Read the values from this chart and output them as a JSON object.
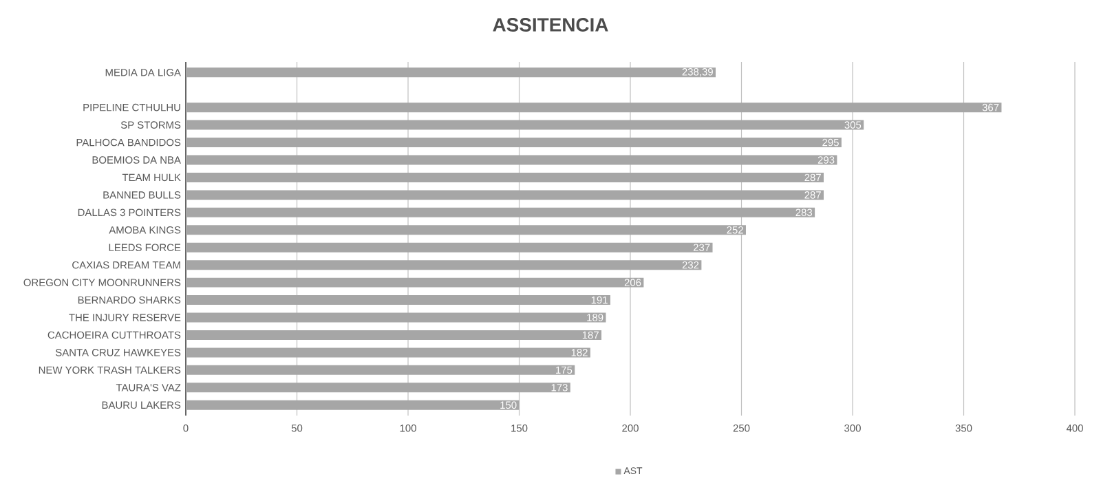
{
  "chart_data": {
    "type": "bar",
    "orientation": "horizontal",
    "title": "ASSITENCIA",
    "categories": [
      "MEDIA DA LIGA",
      null,
      "PIPELINE CTHULHU",
      "SP STORMS",
      "PALHOCA BANDIDOS",
      "BOEMIOS DA NBA",
      "TEAM HULK",
      "BANNED BULLS",
      "DALLAS 3 POINTERS",
      "AMOBA KINGS",
      "LEEDS FORCE",
      "CAXIAS DREAM TEAM",
      "OREGON CITY MOONRUNNERS",
      "BERNARDO SHARKS",
      "THE INJURY RESERVE",
      "CACHOEIRA CUTTHROATS",
      "SANTA CRUZ HAWKEYES",
      "NEW YORK TRASH TALKERS",
      "TAURA'S VAZ",
      "BAURU LAKERS"
    ],
    "series": [
      {
        "name": "AST",
        "color": "#a6a6a6",
        "values": [
          238.39,
          null,
          367,
          305,
          295,
          293,
          287,
          287,
          283,
          252,
          237,
          232,
          206,
          191,
          189,
          187,
          182,
          175,
          173,
          150
        ],
        "value_labels": [
          "238,39",
          null,
          "367",
          "305",
          "295",
          "293",
          "287",
          "287",
          "283",
          "252",
          "237",
          "232",
          "206",
          "191",
          "189",
          "187",
          "182",
          "175",
          "173",
          "150"
        ]
      }
    ],
    "xlim": [
      0,
      400
    ],
    "xticks": [
      0,
      50,
      100,
      150,
      200,
      250,
      300,
      350,
      400
    ],
    "grid": "x",
    "legend": "bottom"
  }
}
